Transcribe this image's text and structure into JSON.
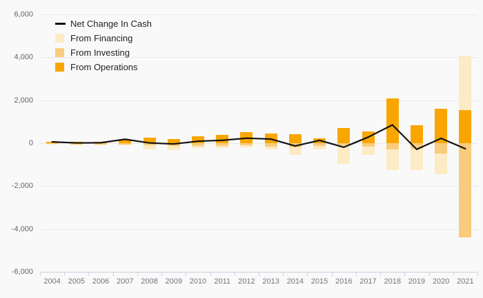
{
  "chart_data": {
    "type": "bar",
    "stacked": true,
    "title": "",
    "xlabel": "",
    "ylabel": "",
    "ylim": [
      -6000,
      6000
    ],
    "grid": true,
    "legend_position": "top-left",
    "categories": [
      "2004",
      "2005",
      "2006",
      "2007",
      "2008",
      "2009",
      "2010",
      "2011",
      "2012",
      "2013",
      "2014",
      "2015",
      "2016",
      "2017",
      "2018",
      "2019",
      "2020",
      "2021"
    ],
    "yticks": [
      {
        "value": 6000,
        "label": "6,000"
      },
      {
        "value": 4000,
        "label": "4,000"
      },
      {
        "value": 2000,
        "label": "2,000"
      },
      {
        "value": 0,
        "label": "0"
      },
      {
        "value": -2000,
        "label": "-2,000"
      },
      {
        "value": -4000,
        "label": "-4,000"
      },
      {
        "value": -6000,
        "label": "-6,000"
      }
    ],
    "series": [
      {
        "name": "From Operations",
        "color": "#f9a602",
        "values": [
          70,
          60,
          70,
          160,
          260,
          200,
          320,
          390,
          500,
          460,
          420,
          230,
          720,
          550,
          2080,
          840,
          1600,
          1540
        ]
      },
      {
        "name": "From Investing",
        "color": "#f8cc7c",
        "values": [
          -30,
          -50,
          -50,
          -60,
          -110,
          -120,
          -120,
          -130,
          -100,
          -150,
          -180,
          -130,
          -100,
          -150,
          -300,
          -250,
          -480,
          -4400
        ]
      },
      {
        "name": "From Financing",
        "color": "#fcebc4",
        "values": [
          -20,
          -10,
          -20,
          -40,
          -180,
          -200,
          -110,
          -100,
          -90,
          -150,
          -350,
          -170,
          -860,
          -400,
          -960,
          -1010,
          -960,
          2540
        ]
      }
    ],
    "line_series": {
      "name": "Net Change In Cash",
      "color": "#111111",
      "values": [
        60,
        10,
        20,
        180,
        10,
        -40,
        90,
        130,
        230,
        190,
        -130,
        130,
        -190,
        280,
        850,
        -290,
        225,
        -260
      ]
    }
  },
  "legend": {
    "items": [
      {
        "label": "Net Change In Cash",
        "type": "line",
        "color": "#111111"
      },
      {
        "label": "From Financing",
        "type": "square",
        "color": "#fcebc4"
      },
      {
        "label": "From Investing",
        "type": "square",
        "color": "#f8cc7c"
      },
      {
        "label": "From Operations",
        "type": "square",
        "color": "#f9a602"
      }
    ]
  },
  "colors": {
    "background": "#f9f9f9",
    "gridline": "#e9e9e9",
    "axis": "#c9d0e4",
    "tick_text": "#5f6368",
    "operations": "#f9a602",
    "investing": "#f8cc7c",
    "financing": "#fcebc4",
    "net_line": "#111111"
  }
}
